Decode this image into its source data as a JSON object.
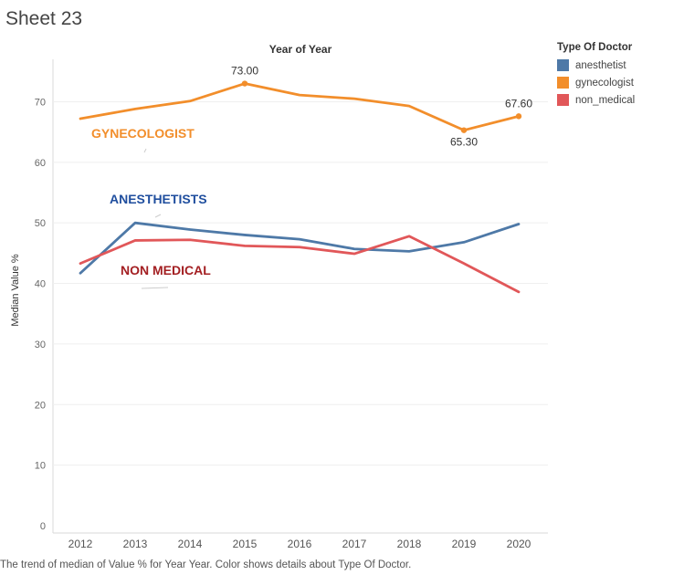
{
  "sheet_title": "Sheet 23",
  "caption": "The trend of median of Value % for Year Year.  Color shows details about Type Of Doctor.",
  "legend": {
    "title": "Type Of Doctor",
    "items": [
      {
        "label": "anesthetist",
        "color": "#4e79a7"
      },
      {
        "label": "gynecologist",
        "color": "#f28e2b"
      },
      {
        "label": "non_medical",
        "color": "#e15759"
      }
    ]
  },
  "chart_data": {
    "type": "line",
    "title": "Year of Year",
    "xlabel": "",
    "ylabel": "Median Value %",
    "x": [
      2012,
      2013,
      2014,
      2015,
      2016,
      2017,
      2018,
      2019,
      2020
    ],
    "ylim": [
      0,
      77
    ],
    "yticks": [
      0,
      10,
      20,
      30,
      40,
      50,
      60,
      70
    ],
    "series": [
      {
        "name": "anesthetist",
        "color": "#4e79a7",
        "values": [
          41.7,
          50.0,
          48.9,
          48.0,
          47.3,
          45.7,
          45.3,
          46.8,
          49.8
        ]
      },
      {
        "name": "gynecologist",
        "color": "#f28e2b",
        "values": [
          67.2,
          68.8,
          70.1,
          73.0,
          71.1,
          70.5,
          69.3,
          65.3,
          67.6
        ]
      },
      {
        "name": "non_medical",
        "color": "#e15759",
        "values": [
          43.3,
          47.1,
          47.2,
          46.2,
          46.0,
          44.9,
          47.8,
          43.3,
          38.6
        ]
      }
    ],
    "data_labels": [
      {
        "series": 1,
        "index": 3,
        "text": "73.00",
        "pos": "above"
      },
      {
        "series": 1,
        "index": 7,
        "text": "65.30",
        "pos": "below"
      },
      {
        "series": 1,
        "index": 8,
        "text": "67.60",
        "pos": "above"
      }
    ],
    "annotations": [
      {
        "text": "GYNECOLOGIST",
        "color": "#f28e2b"
      },
      {
        "text": "ANESTHETISTS",
        "color": "#1f4e9e"
      },
      {
        "text": "NON MEDICAL",
        "color": "#a31f22"
      }
    ]
  }
}
